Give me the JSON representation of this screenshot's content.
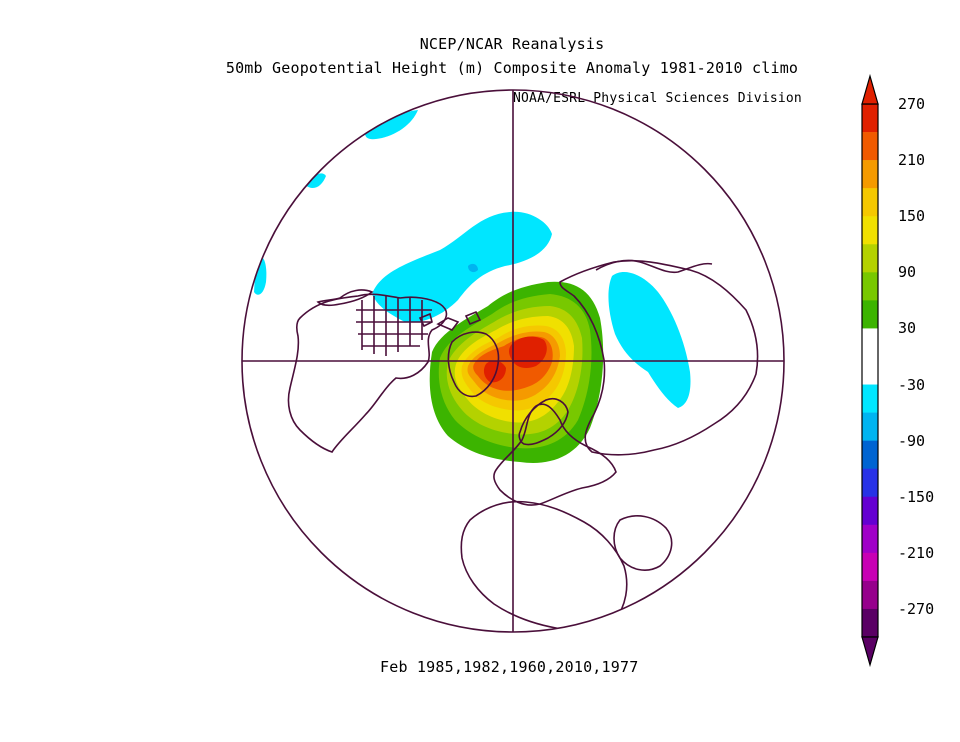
{
  "header": {
    "title": "NCEP/NCAR Reanalysis",
    "subtitle": "50mb Geopotential Height (m) Composite Anomaly 1981-2010 climo",
    "credit": "NOAA/ESRL Physical Sciences Division"
  },
  "footer": {
    "text": "Feb 1985,1982,1960,2010,1977"
  },
  "colorbar": {
    "labels": [
      "270",
      "210",
      "150",
      "90",
      "30",
      "-30",
      "-90",
      "-150",
      "-210",
      "-270"
    ],
    "colors": [
      "#e02000",
      "#f05a00",
      "#f59a00",
      "#f5c800",
      "#f0e000",
      "#b4d200",
      "#78c800",
      "#3cb400",
      "#ffffff",
      "#ffffff",
      "#00e6ff",
      "#00b4f0",
      "#0064d2",
      "#2832e6",
      "#6400d2",
      "#a000c8",
      "#c800b4",
      "#96008c",
      "#5a0064"
    ],
    "top_arrow_color": "#e02000",
    "bottom_arrow_color": "#5a0064"
  },
  "map": {
    "projection": "north-polar-stereographic",
    "land_outline_color": "#4a0f3a",
    "anomaly_colors": {
      "plus_30": "#3cb400",
      "plus_60": "#78c800",
      "plus_90": "#b4d200",
      "plus_120": "#f0e000",
      "plus_150": "#f5c800",
      "plus_180": "#f59a00",
      "plus_210": "#f05a00",
      "plus_240": "#e02000",
      "minus_30": "#00e6ff",
      "minus_60": "#00b4f0"
    }
  }
}
